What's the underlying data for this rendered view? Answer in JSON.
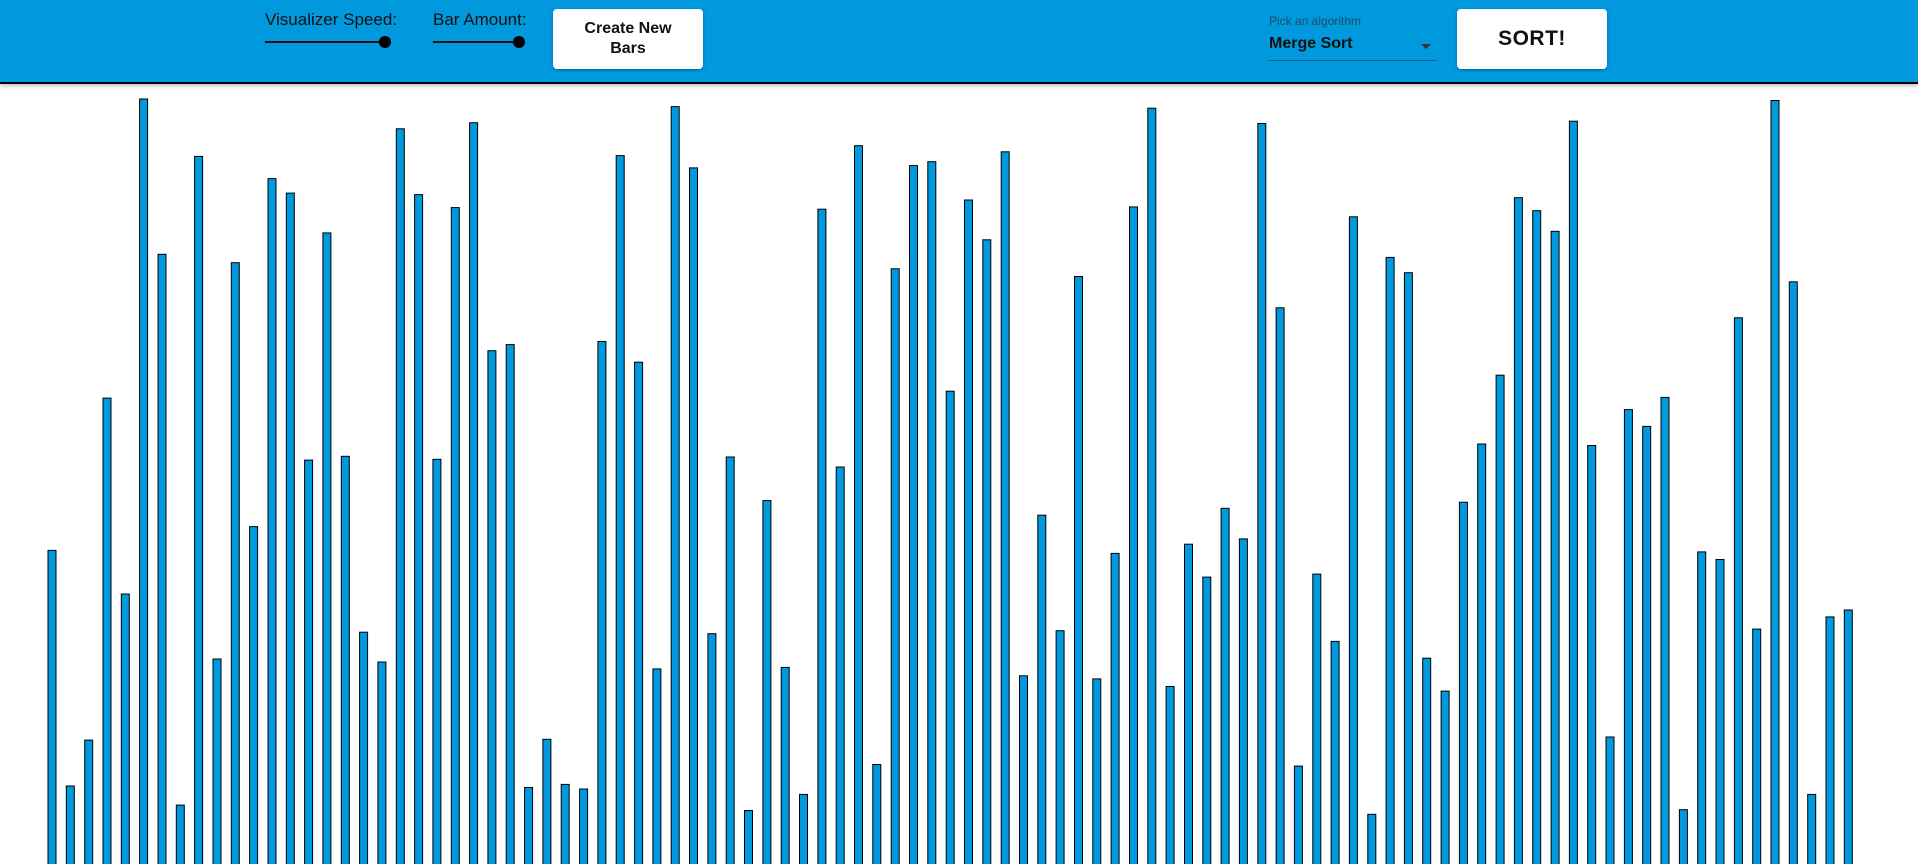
{
  "header": {
    "speed_label": "Visualizer Speed:",
    "speed_value_pct": 100,
    "amount_label": "Bar Amount:",
    "amount_value_pct": 100,
    "create_button_label": "Create New Bars",
    "algorithm_label": "Pick an algorithm",
    "algorithm_value": "Merge Sort",
    "sort_button_label": "SORT!"
  },
  "colors": {
    "header_bg": "#0099dd",
    "bar_fill": "#0099dd",
    "bar_stroke": "#000000"
  },
  "chart_data": {
    "type": "bar",
    "max_value": 100,
    "values": [
      41.0,
      10.2,
      16.2,
      60.9,
      35.3,
      100.0,
      79.7,
      7.7,
      92.5,
      26.8,
      78.6,
      44.1,
      89.6,
      87.7,
      52.8,
      82.5,
      53.3,
      30.3,
      26.4,
      96.1,
      87.5,
      52.9,
      85.8,
      96.9,
      67.1,
      67.9,
      10.0,
      16.3,
      10.4,
      9.8,
      68.3,
      92.6,
      65.6,
      25.5,
      99.0,
      91.0,
      30.1,
      53.2,
      7.0,
      47.5,
      25.7,
      9.1,
      85.6,
      51.9,
      93.9,
      13.0,
      77.8,
      91.3,
      91.8,
      61.8,
      86.8,
      81.6,
      93.1,
      24.6,
      45.6,
      30.5,
      76.8,
      24.2,
      40.6,
      85.9,
      98.8,
      23.2,
      41.8,
      37.5,
      46.5,
      42.5,
      96.8,
      72.7,
      12.8,
      37.9,
      29.1,
      84.6,
      6.5,
      79.3,
      77.3,
      26.9,
      22.6,
      47.3,
      54.9,
      63.9,
      87.1,
      85.4,
      82.7,
      97.1,
      54.7,
      16.6,
      59.4,
      57.2,
      61.0,
      7.1,
      40.8,
      39.8,
      71.4,
      30.7,
      99.8,
      76.1,
      9.1,
      32.3,
      33.2
    ]
  }
}
